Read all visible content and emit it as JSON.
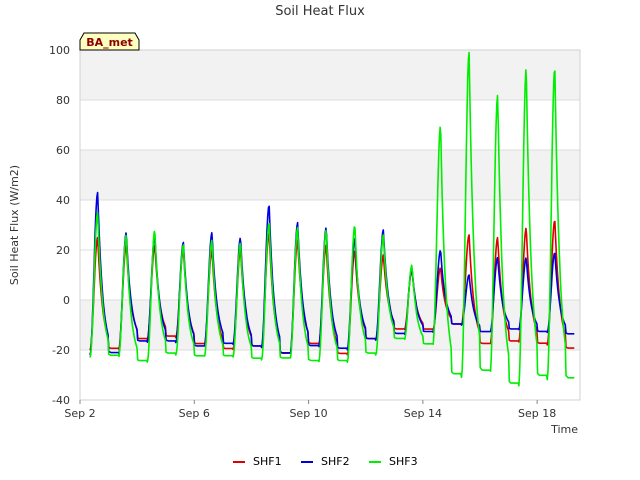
{
  "chart_data": {
    "type": "line",
    "title": "Soil Heat Flux",
    "xlabel": "Time",
    "ylabel": "Soil Heat Flux (W/m2)",
    "badge": "BA_met",
    "ylim": [
      -40,
      100
    ],
    "xlim_days": [
      2,
      19.5
    ],
    "yticks": [
      -40,
      -20,
      0,
      20,
      40,
      60,
      80,
      100
    ],
    "xticks": [
      {
        "day": 2,
        "label": "Sep 2"
      },
      {
        "day": 6,
        "label": "Sep 6"
      },
      {
        "day": 10,
        "label": "Sep 10"
      },
      {
        "day": 14,
        "label": "Sep 14"
      },
      {
        "day": 18,
        "label": "Sep 18"
      }
    ],
    "bands": [
      [
        -20,
        0
      ],
      [
        40,
        60
      ],
      [
        80,
        100
      ]
    ],
    "colors": {
      "band": "#f2f2f2",
      "grid": "#dcdcdc",
      "border": "#d0d0d0"
    },
    "series": [
      {
        "name": "SHF1",
        "color": "#dd0000",
        "daily": [
          {
            "day": 2,
            "peak": 25,
            "trough": -20
          },
          {
            "day": 3,
            "peak": 22,
            "trough": -16
          },
          {
            "day": 4,
            "peak": 22,
            "trough": -15
          },
          {
            "day": 5,
            "peak": 20,
            "trough": -18
          },
          {
            "day": 6,
            "peak": 20,
            "trough": -20
          },
          {
            "day": 7,
            "peak": 20,
            "trough": -19
          },
          {
            "day": 8,
            "peak": 27,
            "trough": -22
          },
          {
            "day": 9,
            "peak": 24,
            "trough": -18
          },
          {
            "day": 10,
            "peak": 22,
            "trough": -22
          },
          {
            "day": 11,
            "peak": 20,
            "trough": -16
          },
          {
            "day": 12,
            "peak": 18,
            "trough": -12
          },
          {
            "day": 13,
            "peak": 12,
            "trough": -12
          },
          {
            "day": 14,
            "peak": 13,
            "trough": -10
          },
          {
            "day": 15,
            "peak": 26,
            "trough": -18
          },
          {
            "day": 16,
            "peak": 25,
            "trough": -17
          },
          {
            "day": 17,
            "peak": 29,
            "trough": -18
          },
          {
            "day": 18,
            "peak": 32,
            "trough": -20
          },
          {
            "day": 19,
            "peak": 33,
            "trough": -18
          }
        ]
      },
      {
        "name": "SHF2",
        "color": "#0000dd",
        "daily": [
          {
            "day": 2,
            "peak": 43,
            "trough": -22
          },
          {
            "day": 3,
            "peak": 27,
            "trough": -17
          },
          {
            "day": 4,
            "peak": 26,
            "trough": -17
          },
          {
            "day": 5,
            "peak": 23,
            "trough": -19
          },
          {
            "day": 6,
            "peak": 27,
            "trough": -18
          },
          {
            "day": 7,
            "peak": 25,
            "trough": -19
          },
          {
            "day": 8,
            "peak": 38,
            "trough": -22
          },
          {
            "day": 9,
            "peak": 31,
            "trough": -19
          },
          {
            "day": 10,
            "peak": 29,
            "trough": -20
          },
          {
            "day": 11,
            "peak": 25,
            "trough": -16
          },
          {
            "day": 12,
            "peak": 28,
            "trough": -14
          },
          {
            "day": 13,
            "peak": 13,
            "trough": -13
          },
          {
            "day": 14,
            "peak": 20,
            "trough": -10
          },
          {
            "day": 15,
            "peak": 10,
            "trough": -13
          },
          {
            "day": 16,
            "peak": 17,
            "trough": -12
          },
          {
            "day": 17,
            "peak": 17,
            "trough": -13
          },
          {
            "day": 18,
            "peak": 19,
            "trough": -14
          },
          {
            "day": 19,
            "peak": 11,
            "trough": -14
          }
        ]
      },
      {
        "name": "SHF3",
        "color": "#00ee00",
        "daily": [
          {
            "day": 2,
            "peak": 35,
            "trough": -23
          },
          {
            "day": 3,
            "peak": 26,
            "trough": -25
          },
          {
            "day": 4,
            "peak": 28,
            "trough": -22
          },
          {
            "day": 5,
            "peak": 22,
            "trough": -23
          },
          {
            "day": 6,
            "peak": 24,
            "trough": -23
          },
          {
            "day": 7,
            "peak": 23,
            "trough": -24
          },
          {
            "day": 8,
            "peak": 31,
            "trough": -24
          },
          {
            "day": 9,
            "peak": 29,
            "trough": -25
          },
          {
            "day": 10,
            "peak": 28,
            "trough": -25
          },
          {
            "day": 11,
            "peak": 30,
            "trough": -22
          },
          {
            "day": 12,
            "peak": 26,
            "trough": -16
          },
          {
            "day": 13,
            "peak": 14,
            "trough": -18
          },
          {
            "day": 14,
            "peak": 70,
            "trough": -31
          },
          {
            "day": 15,
            "peak": 99,
            "trough": -30
          },
          {
            "day": 16,
            "peak": 82,
            "trough": -35
          },
          {
            "day": 17,
            "peak": 93,
            "trough": -32
          },
          {
            "day": 18,
            "peak": 93,
            "trough": -33
          },
          {
            "day": 19,
            "peak": 94,
            "trough": -30
          }
        ]
      }
    ]
  }
}
